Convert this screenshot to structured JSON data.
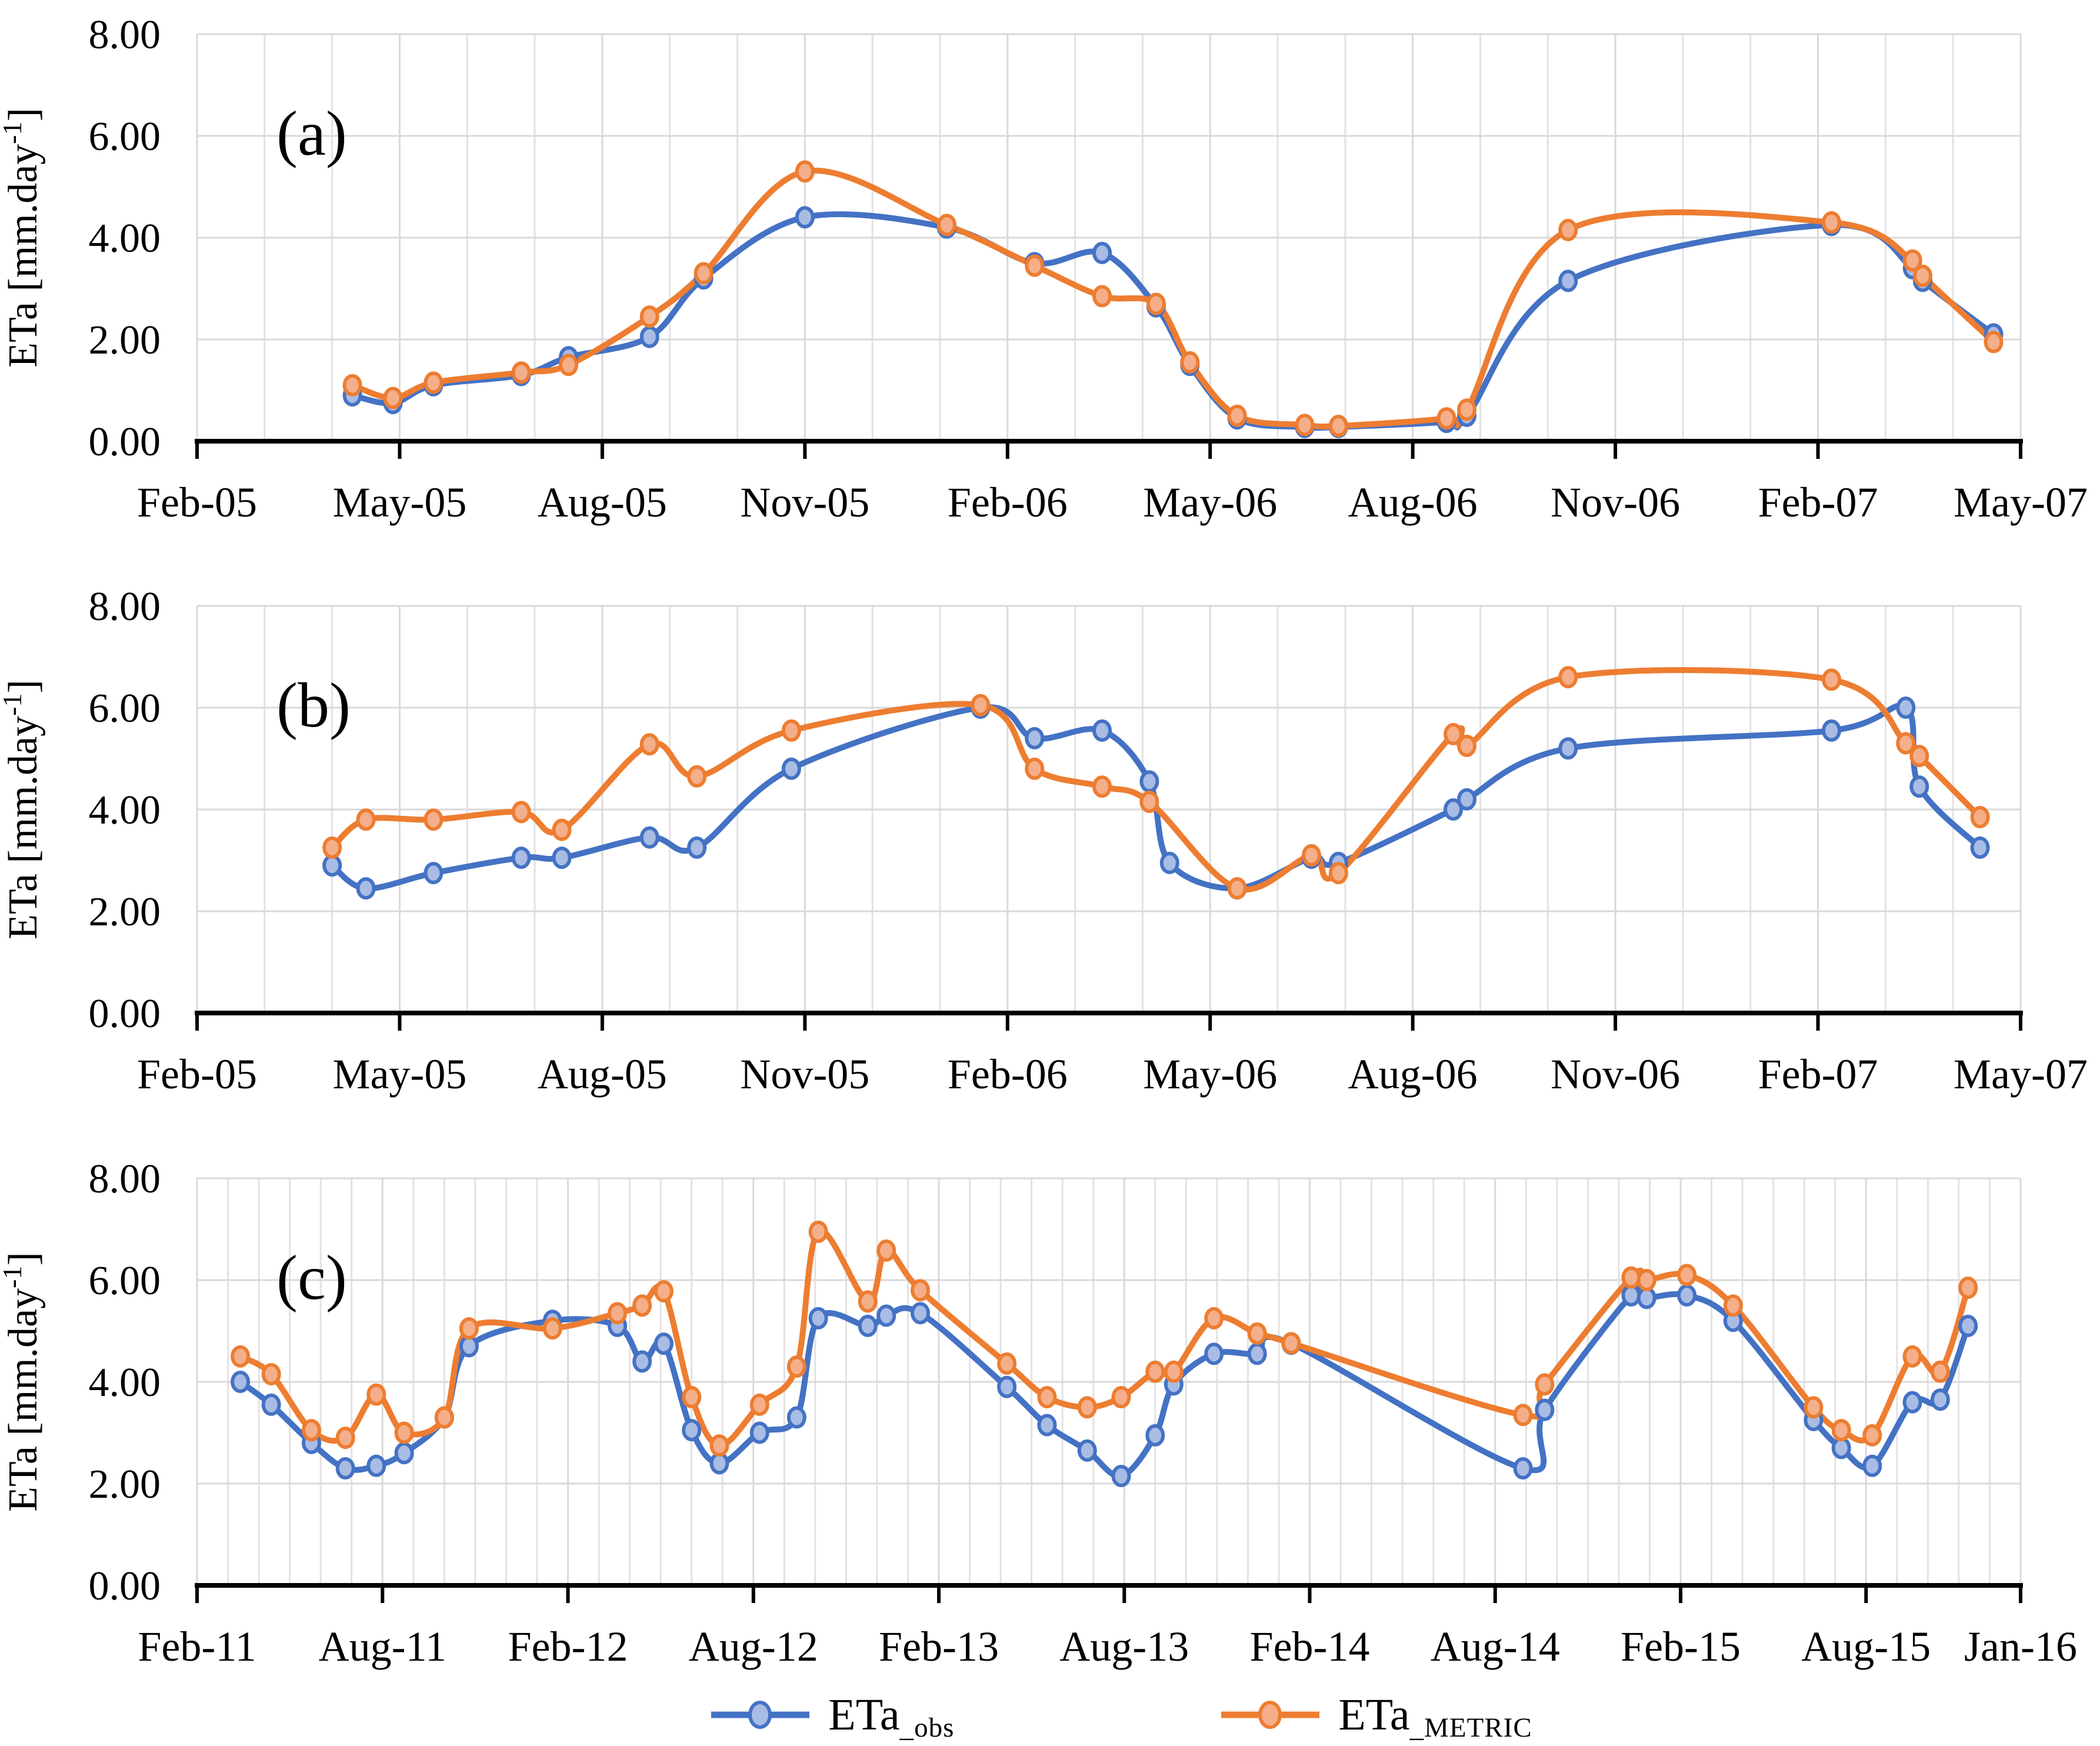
{
  "figure": {
    "description": "Three stacked time-series panels comparing observed and METRIC-modeled actual evapotranspiration",
    "colors": {
      "obs_line": "#4472C4",
      "obs_marker_fill": "#A9BCE4",
      "metric_line": "#ED7D31",
      "metric_marker_fill": "#F4AF8A",
      "gridline_major": "#D9D9D9",
      "gridline_minor": "#E2E2E2",
      "axis": "#000000",
      "text": "#000000"
    },
    "legend": [
      {
        "id": "obs",
        "label_main": "ETa",
        "label_sub": "_obs",
        "line_color": "#4472C4",
        "marker_fill": "#A9BCE4"
      },
      {
        "id": "metric",
        "label_main": "ETa",
        "label_sub": "_METRIC",
        "line_color": "#ED7D31",
        "marker_fill": "#F4AF8A"
      }
    ]
  },
  "chart_data": [
    {
      "type": "line",
      "panel_label": "(a)",
      "ylabel_main": "ETa [mm.day",
      "ylabel_sup": "-1",
      "ylabel_close": "]",
      "ylim": [
        0,
        8
      ],
      "yticks": [
        0,
        2,
        4,
        6,
        8
      ],
      "x_unit": "months since Feb-2005",
      "x_max": 27,
      "minor_grid_step_months": 1,
      "xtick_positions": [
        0,
        3,
        6,
        9,
        12,
        15,
        18,
        21,
        24,
        27
      ],
      "xtick_labels": [
        "Feb-05",
        "May-05",
        "Aug-05",
        "Nov-05",
        "Feb-06",
        "May-06",
        "Aug-06",
        "Nov-06",
        "Feb-07",
        "May-07"
      ],
      "legend_position": "bottom-center",
      "grid": true,
      "series": [
        {
          "name": "ETa_obs",
          "color": "#4472C4",
          "marker_fill": "#A9BCE4",
          "points": [
            [
              2.3,
              0.9
            ],
            [
              2.9,
              0.75
            ],
            [
              3.5,
              1.1
            ],
            [
              4.8,
              1.3
            ],
            [
              5.5,
              1.65
            ],
            [
              6.7,
              2.05
            ],
            [
              7.5,
              3.2
            ],
            [
              9.0,
              4.4
            ],
            [
              11.1,
              4.2
            ],
            [
              12.4,
              3.5
            ],
            [
              13.4,
              3.7
            ],
            [
              14.2,
              2.65
            ],
            [
              14.7,
              1.5
            ],
            [
              15.4,
              0.45
            ],
            [
              16.4,
              0.28
            ],
            [
              16.9,
              0.28
            ],
            [
              18.5,
              0.38
            ],
            [
              18.8,
              0.5
            ],
            [
              20.3,
              3.15
            ],
            [
              24.2,
              4.25
            ],
            [
              25.4,
              3.4
            ],
            [
              25.55,
              3.15
            ],
            [
              26.6,
              2.1
            ]
          ]
        },
        {
          "name": "ETa_METRIC",
          "color": "#ED7D31",
          "marker_fill": "#F4AF8A",
          "points": [
            [
              2.3,
              1.1
            ],
            [
              2.9,
              0.85
            ],
            [
              3.5,
              1.15
            ],
            [
              4.8,
              1.35
            ],
            [
              5.5,
              1.5
            ],
            [
              6.7,
              2.45
            ],
            [
              7.5,
              3.3
            ],
            [
              9.0,
              5.3
            ],
            [
              11.1,
              4.25
            ],
            [
              12.4,
              3.45
            ],
            [
              13.4,
              2.85
            ],
            [
              14.2,
              2.7
            ],
            [
              14.7,
              1.55
            ],
            [
              15.4,
              0.5
            ],
            [
              16.4,
              0.32
            ],
            [
              16.9,
              0.3
            ],
            [
              18.5,
              0.45
            ],
            [
              18.8,
              0.62
            ],
            [
              20.3,
              4.15
            ],
            [
              24.2,
              4.3
            ],
            [
              25.4,
              3.55
            ],
            [
              25.55,
              3.25
            ],
            [
              26.6,
              1.95
            ]
          ]
        }
      ]
    },
    {
      "type": "line",
      "panel_label": "(b)",
      "ylabel_main": "ETa [mm.day",
      "ylabel_sup": "-1",
      "ylabel_close": "]",
      "ylim": [
        0,
        8
      ],
      "yticks": [
        0,
        2,
        4,
        6,
        8
      ],
      "x_unit": "months since Feb-2005",
      "x_max": 27,
      "minor_grid_step_months": 1,
      "xtick_positions": [
        0,
        3,
        6,
        9,
        12,
        15,
        18,
        21,
        24,
        27
      ],
      "xtick_labels": [
        "Feb-05",
        "May-05",
        "Aug-05",
        "Nov-05",
        "Feb-06",
        "May-06",
        "Aug-06",
        "Nov-06",
        "Feb-07",
        "May-07"
      ],
      "legend_position": "bottom-center",
      "grid": true,
      "series": [
        {
          "name": "ETa_obs",
          "color": "#4472C4",
          "marker_fill": "#A9BCE4",
          "points": [
            [
              2.0,
              2.9
            ],
            [
              2.5,
              2.45
            ],
            [
              3.5,
              2.75
            ],
            [
              4.8,
              3.05
            ],
            [
              5.4,
              3.05
            ],
            [
              6.7,
              3.45
            ],
            [
              7.4,
              3.25
            ],
            [
              8.8,
              4.8
            ],
            [
              11.6,
              6.0
            ],
            [
              12.4,
              5.4
            ],
            [
              13.4,
              5.55
            ],
            [
              14.1,
              4.55
            ],
            [
              14.4,
              2.95
            ],
            [
              15.4,
              2.45
            ],
            [
              16.5,
              3.05
            ],
            [
              16.9,
              2.95
            ],
            [
              18.6,
              4.0
            ],
            [
              18.8,
              4.2
            ],
            [
              20.3,
              5.2
            ],
            [
              24.2,
              5.55
            ],
            [
              25.3,
              6.0
            ],
            [
              25.5,
              4.45
            ],
            [
              26.4,
              3.25
            ]
          ]
        },
        {
          "name": "ETa_METRIC",
          "color": "#ED7D31",
          "marker_fill": "#F4AF8A",
          "points": [
            [
              2.0,
              3.25
            ],
            [
              2.5,
              3.8
            ],
            [
              3.5,
              3.8
            ],
            [
              4.8,
              3.95
            ],
            [
              5.4,
              3.6
            ],
            [
              6.7,
              5.28
            ],
            [
              7.4,
              4.65
            ],
            [
              8.8,
              5.55
            ],
            [
              11.6,
              6.05
            ],
            [
              12.4,
              4.8
            ],
            [
              13.4,
              4.45
            ],
            [
              14.1,
              4.15
            ],
            [
              15.4,
              2.45
            ],
            [
              16.5,
              3.1
            ],
            [
              16.9,
              2.75
            ],
            [
              18.6,
              5.48
            ],
            [
              18.8,
              5.25
            ],
            [
              20.3,
              6.6
            ],
            [
              24.2,
              6.55
            ],
            [
              25.3,
              5.3
            ],
            [
              25.5,
              5.05
            ],
            [
              26.4,
              3.85
            ]
          ]
        }
      ]
    },
    {
      "type": "line",
      "panel_label": "(c)",
      "ylabel_main": "ETa [mm.day",
      "ylabel_sup": "-1",
      "ylabel_close": "]",
      "ylim": [
        0,
        8
      ],
      "yticks": [
        0,
        2,
        4,
        6,
        8
      ],
      "x_unit": "months since Feb-2011",
      "x_max": 59,
      "minor_grid_step_months": 1,
      "xtick_positions": [
        0,
        6,
        12,
        18,
        24,
        30,
        36,
        42,
        48,
        54,
        59
      ],
      "xtick_labels": [
        "Feb-11",
        "Aug-11",
        "Feb-12",
        "Aug-12",
        "Feb-13",
        "Aug-13",
        "Feb-14",
        "Aug-14",
        "Feb-15",
        "Aug-15",
        "Jan-16"
      ],
      "legend_position": "bottom-center",
      "grid": true,
      "series": [
        {
          "name": "ETa_obs",
          "color": "#4472C4",
          "marker_fill": "#A9BCE4",
          "points": [
            [
              1.4,
              4.0
            ],
            [
              2.4,
              3.55
            ],
            [
              3.7,
              2.8
            ],
            [
              4.8,
              2.3
            ],
            [
              5.8,
              2.35
            ],
            [
              6.7,
              2.6
            ],
            [
              8.0,
              3.3
            ],
            [
              8.8,
              4.7
            ],
            [
              11.5,
              5.2
            ],
            [
              13.6,
              5.1
            ],
            [
              14.4,
              4.4
            ],
            [
              15.1,
              4.75
            ],
            [
              16.0,
              3.05
            ],
            [
              16.9,
              2.4
            ],
            [
              18.2,
              3.0
            ],
            [
              19.4,
              3.3
            ],
            [
              20.1,
              5.25
            ],
            [
              21.7,
              5.1
            ],
            [
              22.3,
              5.3
            ],
            [
              23.4,
              5.35
            ],
            [
              26.2,
              3.9
            ],
            [
              27.5,
              3.15
            ],
            [
              28.8,
              2.65
            ],
            [
              29.9,
              2.15
            ],
            [
              31.0,
              2.95
            ],
            [
              31.6,
              3.95
            ],
            [
              32.9,
              4.55
            ],
            [
              34.3,
              4.55
            ],
            [
              35.4,
              4.75
            ],
            [
              42.9,
              2.3
            ],
            [
              43.6,
              3.45
            ],
            [
              46.4,
              5.7
            ],
            [
              46.9,
              5.65
            ],
            [
              48.2,
              5.7
            ],
            [
              49.7,
              5.2
            ],
            [
              52.3,
              3.25
            ],
            [
              53.2,
              2.7
            ],
            [
              54.2,
              2.35
            ],
            [
              55.5,
              3.6
            ],
            [
              56.4,
              3.65
            ],
            [
              57.3,
              5.1
            ]
          ]
        },
        {
          "name": "ETa_METRIC",
          "color": "#ED7D31",
          "marker_fill": "#F4AF8A",
          "points": [
            [
              1.4,
              4.5
            ],
            [
              2.4,
              4.15
            ],
            [
              3.7,
              3.05
            ],
            [
              4.8,
              2.9
            ],
            [
              5.8,
              3.75
            ],
            [
              6.7,
              3.0
            ],
            [
              8.0,
              3.3
            ],
            [
              8.8,
              5.05
            ],
            [
              11.5,
              5.05
            ],
            [
              13.6,
              5.35
            ],
            [
              14.4,
              5.5
            ],
            [
              15.1,
              5.78
            ],
            [
              16.0,
              3.7
            ],
            [
              16.9,
              2.75
            ],
            [
              18.2,
              3.55
            ],
            [
              19.4,
              4.3
            ],
            [
              20.1,
              6.95
            ],
            [
              21.7,
              5.58
            ],
            [
              22.3,
              6.58
            ],
            [
              23.4,
              5.8
            ],
            [
              26.2,
              4.36
            ],
            [
              27.5,
              3.7
            ],
            [
              28.8,
              3.5
            ],
            [
              29.9,
              3.7
            ],
            [
              31.0,
              4.2
            ],
            [
              31.6,
              4.2
            ],
            [
              32.9,
              5.25
            ],
            [
              34.3,
              4.95
            ],
            [
              35.4,
              4.76
            ],
            [
              42.9,
              3.35
            ],
            [
              43.6,
              3.95
            ],
            [
              46.4,
              6.05
            ],
            [
              46.9,
              6.0
            ],
            [
              48.2,
              6.1
            ],
            [
              49.7,
              5.5
            ],
            [
              52.3,
              3.5
            ],
            [
              53.2,
              3.05
            ],
            [
              54.2,
              2.95
            ],
            [
              55.5,
              4.5
            ],
            [
              56.4,
              4.2
            ],
            [
              57.3,
              5.85
            ]
          ]
        }
      ]
    }
  ]
}
